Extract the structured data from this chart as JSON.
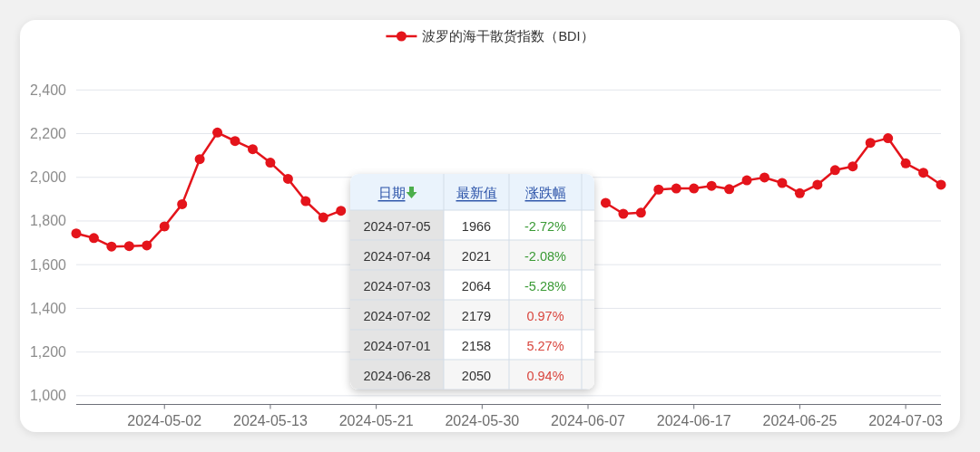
{
  "chart_data": [
    {
      "type": "line",
      "legend": "top",
      "grid": "y",
      "marker": "circle",
      "line_style": "solid",
      "categories": [
        null,
        null,
        null,
        null,
        null,
        "2024-05-02",
        null,
        null,
        null,
        null,
        null,
        "2024-05-13",
        null,
        null,
        null,
        null,
        null,
        "2024-05-21",
        null,
        null,
        null,
        null,
        null,
        "2024-05-30",
        null,
        null,
        null,
        null,
        null,
        "2024-06-07",
        null,
        null,
        null,
        null,
        null,
        "2024-06-17",
        null,
        null,
        null,
        null,
        null,
        "2024-06-25",
        null,
        null,
        null,
        null,
        null,
        "2024-07-03",
        null,
        null
      ],
      "series": [
        {
          "name": "波罗的海干散货指数（BDI）",
          "color": "#e4141b",
          "values": [
            1743,
            1722,
            1683,
            1685,
            1688,
            1775,
            1877,
            2083,
            2205,
            2166,
            2129,
            2067,
            1993,
            1891,
            1816,
            1847,
            null,
            null,
            null,
            null,
            null,
            null,
            null,
            null,
            null,
            null,
            null,
            null,
            null,
            null,
            1883,
            1833,
            1838,
            1944,
            1949,
            1949,
            1961,
            1946,
            1986,
            1999,
            1974,
            1927,
            1966,
            2033,
            2050,
            2158,
            2179,
            2064,
            2021,
            1966
          ]
        }
      ],
      "ylim": [
        960,
        2400
      ],
      "yticks": [
        {
          "value": 1000,
          "label": "1,000"
        },
        {
          "value": 1200,
          "label": "1,200"
        },
        {
          "value": 1400,
          "label": "1,400"
        },
        {
          "value": 1600,
          "label": "1,600"
        },
        {
          "value": 1800,
          "label": "1,800"
        },
        {
          "value": 2000,
          "label": "2,000"
        },
        {
          "value": 2200,
          "label": "2,200"
        },
        {
          "value": 2400,
          "label": "2,400"
        }
      ]
    },
    {
      "type": "other",
      "categories": [
        "日期",
        "最新值",
        "涨跌幅"
      ],
      "annotations": [
        "2024-07-05",
        "1966",
        "-2.72%",
        "2024-07-04",
        "2021",
        "-2.08%",
        "2024-07-03",
        "2064",
        "-5.28%",
        "2024-07-02",
        "2179",
        "0.97%",
        "2024-07-01",
        "2158",
        "5.27%",
        "2024-06-28",
        "2050",
        "0.94%"
      ],
      "colors": [
        "#333333",
        "#333333",
        "#3a9a35",
        "#333333",
        "#333333",
        "#3a9a35",
        "#333333",
        "#333333",
        "#3a9a35",
        "#333333",
        "#333333",
        "#d9463e",
        "#333333",
        "#333333",
        "#d9463e",
        "#333333",
        "#333333",
        "#d9463e"
      ]
    }
  ]
}
